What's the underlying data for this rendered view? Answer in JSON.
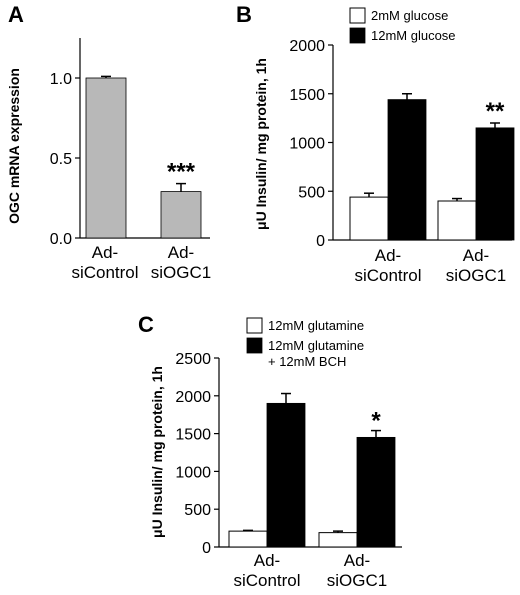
{
  "colors": {
    "gray_bar": "#b8b8b8",
    "black_bar": "#000000",
    "white_bar": "#ffffff"
  },
  "chart_data": [
    {
      "panel": "A",
      "type": "bar",
      "categories": [
        "Ad-\nsiControl",
        "Ad-\nsiOGC1"
      ],
      "series": [
        {
          "values": [
            1.0,
            0.29
          ],
          "errors": [
            0.01,
            0.05
          ],
          "color": "#b8b8b8"
        }
      ],
      "ylabel": "OGC mRNA expression",
      "ylim": [
        0,
        1.25
      ],
      "yticks": [
        0.0,
        0.5,
        1.0
      ],
      "ytick_labels": [
        "0.0",
        "0.5",
        "1.0"
      ],
      "significance": [
        "",
        "***"
      ],
      "grid": false
    },
    {
      "panel": "B",
      "type": "bar",
      "categories": [
        "Ad-\nsiControl",
        "Ad-\nsiOGC1"
      ],
      "series": [
        {
          "name": "2mM glucose",
          "values": [
            440,
            400
          ],
          "errors": [
            40,
            25
          ],
          "color": "#ffffff"
        },
        {
          "name": "12mM glucose",
          "values": [
            1440,
            1150
          ],
          "errors": [
            60,
            50
          ],
          "color": "#000000"
        }
      ],
      "ylabel": "μU Insulin/ mg protein, 1h",
      "ylim": [
        0,
        2000
      ],
      "yticks": [
        0,
        500,
        1000,
        1500,
        2000
      ],
      "ytick_labels": [
        "0",
        "500",
        "1000",
        "1500",
        "2000"
      ],
      "significance": [
        "",
        "**"
      ],
      "legend": "top-right",
      "grid": false
    },
    {
      "panel": "C",
      "type": "bar",
      "categories": [
        "Ad-\nsiControl",
        "Ad-\nsiOGC1"
      ],
      "series": [
        {
          "name": "12mM glutamine",
          "values": [
            210,
            190
          ],
          "errors": [
            10,
            20
          ],
          "color": "#ffffff"
        },
        {
          "name": "12mM glutamine\n+ 12mM BCH",
          "values": [
            1900,
            1450
          ],
          "errors": [
            130,
            90
          ],
          "color": "#000000"
        }
      ],
      "ylabel": "μU Insulin/ mg protein, 1h",
      "ylim": [
        0,
        2500
      ],
      "yticks": [
        0,
        500,
        1000,
        1500,
        2000,
        2500
      ],
      "ytick_labels": [
        "0",
        "500",
        "1000",
        "1500",
        "2000",
        "2500"
      ],
      "significance": [
        "",
        "*"
      ],
      "legend": "top-right",
      "grid": false
    }
  ]
}
